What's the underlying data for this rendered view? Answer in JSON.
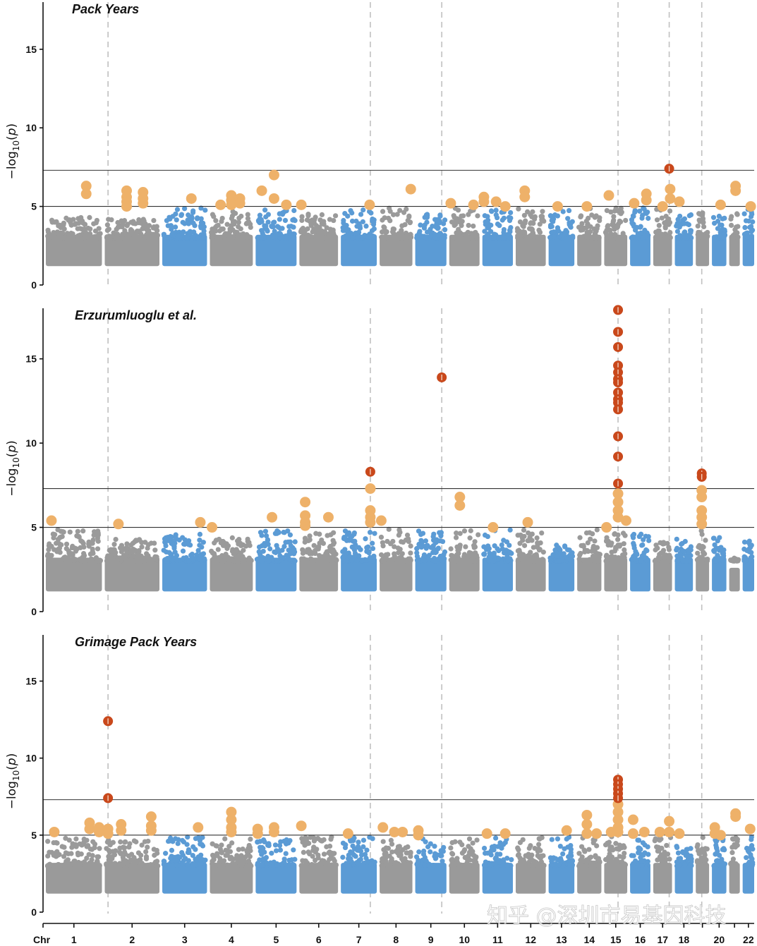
{
  "chart_data": {
    "type": "scatter",
    "subtype": "manhattan",
    "xlabel_prefix": "Chr",
    "ylabel": "-log10(p)",
    "ylim": [
      0,
      18
    ],
    "yticks": [
      0,
      5,
      10,
      15
    ],
    "thresholds": {
      "genome_wide": 7.3,
      "suggestive": 5
    },
    "chromosomes": [
      "1",
      "2",
      "3",
      "4",
      "5",
      "6",
      "7",
      "8",
      "9",
      "10",
      "11",
      "12",
      "13",
      "14",
      "15",
      "16",
      "17",
      "18",
      "19",
      "20",
      "21",
      "22"
    ],
    "chromosome_tick_labels": [
      "1",
      "2",
      "3",
      "4",
      "5",
      "6",
      "7",
      "8",
      "9",
      "10",
      "11",
      "12",
      "13",
      "14",
      "15",
      "16",
      "17",
      "18",
      "",
      "20",
      "",
      "22"
    ],
    "chromosome_relative_sizes": [
      248,
      242,
      198,
      190,
      181,
      171,
      159,
      145,
      138,
      134,
      135,
      133,
      114,
      107,
      102,
      90,
      83,
      80,
      59,
      64,
      47,
      51
    ],
    "chromosome_colors": [
      "#9a9a9a",
      "#9a9a9a",
      "#5b9bd5",
      "#9a9a9a",
      "#5b9bd5",
      "#9a9a9a",
      "#5b9bd5",
      "#9a9a9a",
      "#5b9bd5",
      "#9a9a9a",
      "#5b9bd5",
      "#9a9a9a",
      "#5b9bd5",
      "#9a9a9a",
      "#9a9a9a",
      "#5b9bd5",
      "#9a9a9a",
      "#5b9bd5",
      "#9a9a9a",
      "#5b9bd5",
      "#9a9a9a",
      "#5b9bd5"
    ],
    "colors": {
      "gray": "#9a9a9a",
      "blue": "#5b9bd5",
      "suggestive_hit": "#eeb169",
      "significant_hit": "#c9481b",
      "guide_line": "#c0c0c0",
      "threshold_line": "#333333"
    },
    "highlight_loci_dashed_lines": [
      {
        "chr": "2",
        "pos": 0.06
      },
      {
        "chr": "7",
        "pos": 0.82
      },
      {
        "chr": "9",
        "pos": 0.85
      },
      {
        "chr": "15",
        "pos": 0.6
      },
      {
        "chr": "17",
        "pos": 0.85
      },
      {
        "chr": "19",
        "pos": 0.45
      }
    ],
    "panels": [
      {
        "title": "Pack Years",
        "baseline_max": [
          4.3,
          4.2,
          4.9,
          4.8,
          4.9,
          4.6,
          4.9,
          4.9,
          4.8,
          4.9,
          4.9,
          4.9,
          4.9,
          4.9,
          4.9,
          4.9,
          4.9,
          4.5,
          4.6,
          4.8,
          4.9,
          4.9
        ],
        "suggestive_hits": [
          {
            "chr": "1",
            "pos": 0.72,
            "p": [
              6.3,
              5.8
            ]
          },
          {
            "chr": "2",
            "pos": 0.4,
            "p": [
              6.0,
              5.6,
              5.3,
              5.0
            ]
          },
          {
            "chr": "2",
            "pos": 0.7,
            "p": [
              5.9,
              5.5,
              5.2
            ]
          },
          {
            "chr": "3",
            "pos": 0.65,
            "p": [
              5.5
            ]
          },
          {
            "chr": "4",
            "pos": 0.25,
            "p": [
              5.1
            ]
          },
          {
            "chr": "4",
            "pos": 0.5,
            "p": [
              5.7,
              5.4,
              5.1
            ]
          },
          {
            "chr": "4",
            "pos": 0.7,
            "p": [
              5.5,
              5.2
            ]
          },
          {
            "chr": "5",
            "pos": 0.15,
            "p": [
              6.0
            ]
          },
          {
            "chr": "5",
            "pos": 0.45,
            "p": [
              7.0,
              5.5
            ]
          },
          {
            "chr": "5",
            "pos": 0.75,
            "p": [
              5.1
            ]
          },
          {
            "chr": "6",
            "pos": 0.05,
            "p": [
              5.1
            ]
          },
          {
            "chr": "7",
            "pos": 0.8,
            "p": [
              5.1
            ]
          },
          {
            "chr": "8",
            "pos": 0.95,
            "p": [
              6.1
            ]
          },
          {
            "chr": "10",
            "pos": 0.05,
            "p": [
              5.2
            ]
          },
          {
            "chr": "10",
            "pos": 0.8,
            "p": [
              5.1
            ]
          },
          {
            "chr": "11",
            "pos": 0.05,
            "p": [
              5.6,
              5.3
            ]
          },
          {
            "chr": "11",
            "pos": 0.45,
            "p": [
              5.3
            ]
          },
          {
            "chr": "11",
            "pos": 0.75,
            "p": [
              5.0
            ]
          },
          {
            "chr": "12",
            "pos": 0.3,
            "p": [
              6.0,
              5.6
            ]
          },
          {
            "chr": "13",
            "pos": 0.35,
            "p": [
              5.0
            ]
          },
          {
            "chr": "14",
            "pos": 0.4,
            "p": [
              5.0
            ]
          },
          {
            "chr": "15",
            "pos": 0.2,
            "p": [
              5.7
            ]
          },
          {
            "chr": "16",
            "pos": 0.2,
            "p": [
              5.2
            ]
          },
          {
            "chr": "16",
            "pos": 0.8,
            "p": [
              5.8,
              5.4
            ]
          },
          {
            "chr": "17",
            "pos": 0.5,
            "p": [
              5.0
            ]
          },
          {
            "chr": "17",
            "pos": 0.9,
            "p": [
              6.1,
              5.5
            ]
          },
          {
            "chr": "18",
            "pos": 0.25,
            "p": [
              5.3
            ]
          },
          {
            "chr": "20",
            "pos": 0.6,
            "p": [
              5.1
            ]
          },
          {
            "chr": "21",
            "pos": 0.6,
            "p": [
              6.3,
              6.0
            ]
          },
          {
            "chr": "22",
            "pos": 0.7,
            "p": [
              5.0
            ]
          }
        ],
        "significant_hits": [
          {
            "chr": "17",
            "pos": 0.85,
            "p": [
              7.4
            ]
          }
        ]
      },
      {
        "title": "Erzurumluoglu et al.",
        "baseline_max": [
          4.9,
          4.3,
          4.6,
          4.4,
          4.8,
          4.7,
          4.9,
          4.9,
          4.9,
          4.8,
          4.9,
          4.9,
          4.0,
          4.9,
          4.9,
          4.6,
          4.2,
          4.3,
          4.8,
          4.4,
          3.2,
          4.2
        ],
        "suggestive_hits": [
          {
            "chr": "1",
            "pos": 0.1,
            "p": [
              5.4
            ]
          },
          {
            "chr": "2",
            "pos": 0.25,
            "p": [
              5.2
            ]
          },
          {
            "chr": "3",
            "pos": 0.85,
            "p": [
              5.3
            ]
          },
          {
            "chr": "4",
            "pos": 0.05,
            "p": [
              5.0
            ]
          },
          {
            "chr": "5",
            "pos": 0.4,
            "p": [
              5.6
            ]
          },
          {
            "chr": "6",
            "pos": 0.15,
            "p": [
              6.5,
              5.7,
              5.3,
              5.1
            ]
          },
          {
            "chr": "6",
            "pos": 0.75,
            "p": [
              5.6
            ]
          },
          {
            "chr": "7",
            "pos": 0.82,
            "p": [
              7.3,
              6.0,
              5.6,
              5.3
            ]
          },
          {
            "chr": "8",
            "pos": 0.05,
            "p": [
              5.4
            ]
          },
          {
            "chr": "10",
            "pos": 0.35,
            "p": [
              6.8,
              6.3
            ]
          },
          {
            "chr": "11",
            "pos": 0.35,
            "p": [
              5.0
            ]
          },
          {
            "chr": "12",
            "pos": 0.4,
            "p": [
              5.3
            ]
          },
          {
            "chr": "15",
            "pos": 0.1,
            "p": [
              5.0
            ]
          },
          {
            "chr": "15",
            "pos": 0.6,
            "p": [
              7.0,
              6.5,
              6.0,
              5.6
            ]
          },
          {
            "chr": "15",
            "pos": 0.95,
            "p": [
              5.4
            ]
          },
          {
            "chr": "19",
            "pos": 0.45,
            "p": [
              7.2,
              6.8,
              6.0,
              5.6,
              5.2
            ]
          }
        ],
        "significant_hits": [
          {
            "chr": "7",
            "pos": 0.82,
            "p": [
              8.3
            ]
          },
          {
            "chr": "9",
            "pos": 0.85,
            "p": [
              13.9
            ]
          },
          {
            "chr": "15",
            "pos": 0.6,
            "p": [
              17.9,
              16.6,
              15.7,
              14.6,
              14.2,
              13.8,
              13.6,
              13.0,
              12.6,
              12.4,
              12.0,
              10.4,
              9.2,
              7.6
            ]
          },
          {
            "chr": "19",
            "pos": 0.45,
            "p": [
              8.2,
              8.0
            ]
          }
        ]
      },
      {
        "title": "Grimage Pack Years",
        "baseline_max": [
          4.8,
          4.7,
          4.9,
          4.8,
          4.8,
          4.9,
          4.9,
          4.7,
          4.8,
          4.8,
          4.9,
          4.9,
          4.9,
          4.9,
          4.9,
          4.9,
          4.9,
          4.6,
          4.9,
          4.8,
          4.9,
          4.9
        ],
        "suggestive_hits": [
          {
            "chr": "1",
            "pos": 0.15,
            "p": [
              5.2
            ]
          },
          {
            "chr": "1",
            "pos": 0.78,
            "p": [
              5.8,
              5.4
            ]
          },
          {
            "chr": "1",
            "pos": 0.95,
            "p": [
              5.5,
              5.2
            ]
          },
          {
            "chr": "2",
            "pos": 0.06,
            "p": [
              5.4,
              5.1
            ]
          },
          {
            "chr": "2",
            "pos": 0.3,
            "p": [
              5.7,
              5.3
            ]
          },
          {
            "chr": "2",
            "pos": 0.85,
            "p": [
              6.2,
              5.6,
              5.3
            ]
          },
          {
            "chr": "3",
            "pos": 0.8,
            "p": [
              5.5
            ]
          },
          {
            "chr": "4",
            "pos": 0.5,
            "p": [
              6.5,
              6.0,
              5.5,
              5.2
            ]
          },
          {
            "chr": "5",
            "pos": 0.05,
            "p": [
              5.4,
              5.1
            ]
          },
          {
            "chr": "5",
            "pos": 0.45,
            "p": [
              5.5,
              5.2
            ]
          },
          {
            "chr": "6",
            "pos": 0.05,
            "p": [
              5.6
            ]
          },
          {
            "chr": "7",
            "pos": 0.2,
            "p": [
              5.1
            ]
          },
          {
            "chr": "8",
            "pos": 0.1,
            "p": [
              5.5
            ]
          },
          {
            "chr": "8",
            "pos": 0.45,
            "p": [
              5.2
            ]
          },
          {
            "chr": "8",
            "pos": 0.7,
            "p": [
              5.2
            ]
          },
          {
            "chr": "9",
            "pos": 0.1,
            "p": [
              5.3,
              5.0
            ]
          },
          {
            "chr": "11",
            "pos": 0.15,
            "p": [
              5.1
            ]
          },
          {
            "chr": "11",
            "pos": 0.75,
            "p": [
              5.1
            ]
          },
          {
            "chr": "13",
            "pos": 0.7,
            "p": [
              5.3
            ]
          },
          {
            "chr": "14",
            "pos": 0.4,
            "p": [
              6.3,
              5.7,
              5.1
            ]
          },
          {
            "chr": "14",
            "pos": 0.8,
            "p": [
              5.1
            ]
          },
          {
            "chr": "15",
            "pos": 0.3,
            "p": [
              5.2
            ]
          },
          {
            "chr": "15",
            "pos": 0.6,
            "p": [
              7.0,
              6.5,
              6.0,
              5.5,
              5.2
            ]
          },
          {
            "chr": "16",
            "pos": 0.15,
            "p": [
              6.0,
              5.1
            ]
          },
          {
            "chr": "16",
            "pos": 0.7,
            "p": [
              5.2
            ]
          },
          {
            "chr": "17",
            "pos": 0.35,
            "p": [
              5.2
            ]
          },
          {
            "chr": "17",
            "pos": 0.85,
            "p": [
              5.9,
              5.2
            ]
          },
          {
            "chr": "18",
            "pos": 0.25,
            "p": [
              5.1
            ]
          },
          {
            "chr": "20",
            "pos": 0.2,
            "p": [
              5.5,
              5.1
            ]
          },
          {
            "chr": "20",
            "pos": 0.6,
            "p": [
              5.0
            ]
          },
          {
            "chr": "21",
            "pos": 0.6,
            "p": [
              6.4,
              6.2
            ]
          },
          {
            "chr": "22",
            "pos": 0.65,
            "p": [
              5.4
            ]
          }
        ],
        "significant_hits": [
          {
            "chr": "2",
            "pos": 0.06,
            "p": [
              12.4,
              7.4
            ]
          },
          {
            "chr": "15",
            "pos": 0.6,
            "p": [
              8.6,
              8.3,
              8.0,
              7.7,
              7.4
            ]
          }
        ]
      }
    ]
  },
  "watermark": "知乎 @深圳市易基因科技"
}
